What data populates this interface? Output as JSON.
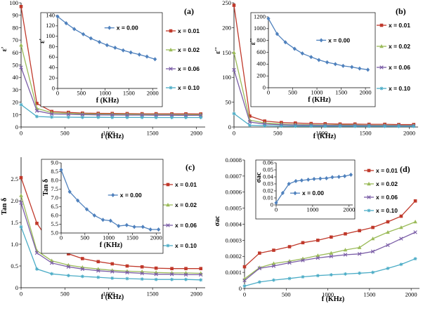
{
  "chart_data": [
    {
      "panel": "(a)",
      "type": "line",
      "xlabel": "f (KHz)",
      "ylabel": "ε'",
      "xlim": [
        0,
        2100
      ],
      "ylim": [
        0,
        100
      ],
      "xticks": [
        0,
        500,
        1000,
        1500,
        2000
      ],
      "yticks": [
        0,
        10,
        20,
        30,
        40,
        50,
        60,
        70,
        80,
        90,
        100
      ],
      "series": [
        {
          "name": "x = 0.01",
          "color": "#c0392b",
          "marker": "square",
          "x": [
            0,
            180,
            350,
            540,
            700,
            880,
            1040,
            1210,
            1380,
            1540,
            1720,
            1880,
            2050
          ],
          "y": [
            97,
            19,
            12.5,
            11.8,
            11.2,
            11,
            10.9,
            10.8,
            10.7,
            10.7,
            10.6,
            10.6,
            10.5
          ]
        },
        {
          "name": "x = 0.02",
          "color": "#9bbb59",
          "marker": "triangle",
          "x": [
            0,
            180,
            350,
            540,
            700,
            880,
            1040,
            1210,
            1380,
            1540,
            1720,
            1880,
            2050
          ],
          "y": [
            66,
            15,
            11.5,
            11,
            10.6,
            10.4,
            10.3,
            10.2,
            10.1,
            10,
            10,
            9.9,
            9.9
          ]
        },
        {
          "name": "x = 0.06",
          "color": "#7b5ea7",
          "marker": "x",
          "x": [
            0,
            180,
            350,
            540,
            700,
            880,
            1040,
            1210,
            1380,
            1540,
            1720,
            1880,
            2050
          ],
          "y": [
            48,
            13,
            10.5,
            10.2,
            10,
            9.8,
            9.7,
            9.6,
            9.6,
            9.5,
            9.5,
            9.4,
            9.4
          ]
        },
        {
          "name": "x = 0.10",
          "color": "#4bacc6",
          "marker": "star",
          "x": [
            0,
            180,
            350,
            540,
            700,
            880,
            1040,
            1210,
            1380,
            1540,
            1720,
            1880,
            2050
          ],
          "y": [
            18,
            8.5,
            8,
            7.9,
            7.8,
            7.8,
            7.7,
            7.7,
            7.7,
            7.6,
            7.6,
            7.6,
            7.6
          ]
        }
      ],
      "inset": {
        "xlabel": "f (KHz)",
        "ylabel": "ε'",
        "xlim": [
          0,
          2100
        ],
        "ylim": [
          0,
          140
        ],
        "xticks": [
          0,
          500,
          1000,
          1500,
          2000
        ],
        "yticks": [
          0,
          20,
          40,
          60,
          80,
          100,
          120,
          140
        ],
        "series": [
          {
            "name": "x = 0.00",
            "color": "#4f81bd",
            "marker": "diamond",
            "x": [
              0,
              180,
              350,
              540,
              700,
              880,
              1040,
              1210,
              1380,
              1540,
              1720,
              1880,
              2050
            ],
            "y": [
              138,
              125,
              114,
              104,
              96,
              89,
              83,
              78,
              73,
              69,
              65,
              61,
              56
            ]
          }
        ]
      }
    },
    {
      "panel": "(b)",
      "type": "line",
      "xlabel": "f (KHz)",
      "ylabel": "ε''",
      "xlim": [
        0,
        2100
      ],
      "ylim": [
        0,
        250
      ],
      "xticks": [
        0,
        500,
        1000,
        1500,
        2000
      ],
      "yticks": [
        0,
        50,
        100,
        150,
        200,
        250
      ],
      "series": [
        {
          "name": "x = 0.01",
          "color": "#c0392b",
          "marker": "square",
          "x": [
            0,
            180,
            350,
            540,
            700,
            880,
            1040,
            1210,
            1380,
            1540,
            1720,
            1880,
            2050
          ],
          "y": [
            245,
            22,
            12,
            9,
            8,
            7,
            6.5,
            6,
            6,
            5.5,
            5.5,
            5,
            5
          ]
        },
        {
          "name": "x = 0.02",
          "color": "#9bbb59",
          "marker": "triangle",
          "x": [
            0,
            180,
            350,
            540,
            700,
            880,
            1040,
            1210,
            1380,
            1540,
            1720,
            1880,
            2050
          ],
          "y": [
            150,
            14,
            8,
            6,
            5,
            4.5,
            4,
            4,
            3.8,
            3.5,
            3.5,
            3.3,
            3.2
          ]
        },
        {
          "name": "x = 0.06",
          "color": "#7b5ea7",
          "marker": "x",
          "x": [
            0,
            180,
            350,
            540,
            700,
            880,
            1040,
            1210,
            1380,
            1540,
            1720,
            1880,
            2050
          ],
          "y": [
            115,
            10,
            6,
            4.5,
            4,
            3.5,
            3.2,
            3,
            3,
            2.8,
            2.7,
            2.6,
            2.5
          ]
        },
        {
          "name": "x = 0.10",
          "color": "#4bacc6",
          "marker": "star",
          "x": [
            0,
            180,
            350,
            540,
            700,
            880,
            1040,
            1210,
            1380,
            1540,
            1720,
            1880,
            2050
          ],
          "y": [
            27,
            3.5,
            2.5,
            2,
            1.8,
            1.7,
            1.6,
            1.5,
            1.5,
            1.4,
            1.4,
            1.3,
            1.3
          ]
        }
      ],
      "inset": {
        "xlabel": "f (KHz)",
        "ylabel": "ε''",
        "xlim": [
          0,
          2100
        ],
        "ylim": [
          0,
          1200
        ],
        "xticks": [
          0,
          500,
          1000,
          1500,
          2000
        ],
        "yticks": [
          0,
          200,
          400,
          600,
          800,
          1000,
          1200
        ],
        "series": [
          {
            "name": "x = 0.00",
            "color": "#4f81bd",
            "marker": "diamond",
            "x": [
              0,
              180,
              350,
              540,
              700,
              880,
              1040,
              1210,
              1380,
              1540,
              1720,
              1880,
              2050
            ],
            "y": [
              1170,
              910,
              770,
              660,
              580,
              520,
              470,
              430,
              400,
              370,
              350,
              325,
              305
            ]
          }
        ]
      }
    },
    {
      "panel": "(c)",
      "type": "line",
      "xlabel": "f (KHz)",
      "ylabel": "Tan δ",
      "xlim": [
        0,
        2100
      ],
      "ylim": [
        0,
        3
      ],
      "xticks": [
        0,
        500,
        1000,
        1500,
        2000
      ],
      "yticks": [
        0,
        0.5,
        1,
        1.5,
        2,
        2.5
      ],
      "series": [
        {
          "name": "x = 0.01",
          "color": "#c0392b",
          "marker": "square",
          "x": [
            0,
            180,
            350,
            540,
            700,
            880,
            1040,
            1210,
            1380,
            1540,
            1720,
            1880,
            2050
          ],
          "y": [
            2.53,
            1.48,
            0.98,
            0.78,
            0.67,
            0.6,
            0.55,
            0.5,
            0.48,
            0.45,
            0.44,
            0.44,
            0.44
          ]
        },
        {
          "name": "x = 0.02",
          "color": "#9bbb59",
          "marker": "triangle",
          "x": [
            0,
            180,
            350,
            540,
            700,
            880,
            1040,
            1210,
            1380,
            1540,
            1720,
            1880,
            2050
          ],
          "y": [
            2.12,
            0.85,
            0.62,
            0.52,
            0.47,
            0.43,
            0.4,
            0.38,
            0.37,
            0.35,
            0.34,
            0.34,
            0.33
          ]
        },
        {
          "name": "x = 0.06",
          "color": "#7b5ea7",
          "marker": "x",
          "x": [
            0,
            180,
            350,
            540,
            700,
            880,
            1040,
            1210,
            1380,
            1540,
            1720,
            1880,
            2050
          ],
          "y": [
            1.95,
            0.8,
            0.57,
            0.48,
            0.43,
            0.39,
            0.37,
            0.35,
            0.33,
            0.31,
            0.31,
            0.3,
            0.3
          ]
        },
        {
          "name": "x = 0.10",
          "color": "#4bacc6",
          "marker": "star",
          "x": [
            0,
            180,
            350,
            540,
            700,
            880,
            1040,
            1210,
            1380,
            1540,
            1720,
            1880,
            2050
          ],
          "y": [
            1.4,
            0.43,
            0.32,
            0.28,
            0.26,
            0.24,
            0.22,
            0.21,
            0.2,
            0.19,
            0.19,
            0.19,
            0.18
          ]
        }
      ],
      "inset": {
        "xlabel": "f (KHz)",
        "ylabel": "Tan δ",
        "xlim": [
          0,
          2100
        ],
        "ylim": [
          5,
          9
        ],
        "xticks": [
          0,
          500,
          1000,
          1500,
          2000
        ],
        "yticks": [
          5,
          5.5,
          6,
          6.5,
          7,
          7.5,
          8,
          8.5,
          9
        ],
        "series": [
          {
            "name": "x = 0.00",
            "color": "#4f81bd",
            "marker": "diamond",
            "x": [
              0,
              180,
              350,
              540,
              700,
              880,
              1040,
              1210,
              1380,
              1540,
              1720,
              1880,
              2050
            ],
            "y": [
              8.6,
              7.35,
              6.85,
              6.35,
              6.0,
              5.75,
              5.7,
              5.4,
              5.45,
              5.35,
              5.35,
              5.2,
              5.2
            ]
          }
        ]
      }
    },
    {
      "panel": "(d)",
      "type": "line",
      "xlabel": "f (KHz)",
      "ylabel": "σac",
      "xlim": [
        0,
        2100
      ],
      "ylim": [
        0,
        0.0008
      ],
      "xticks": [
        0,
        500,
        1000,
        1500,
        2000
      ],
      "yticks": [
        0,
        0.0001,
        0.0002,
        0.0003,
        0.0004,
        0.0005,
        0.0006,
        0.0007,
        0.0008
      ],
      "series": [
        {
          "name": "x = 0.01",
          "color": "#c0392b",
          "marker": "square",
          "x": [
            0,
            180,
            350,
            540,
            700,
            880,
            1040,
            1210,
            1380,
            1540,
            1720,
            1880,
            2050
          ],
          "y": [
            0.000135,
            0.00022,
            0.000238,
            0.00026,
            0.000285,
            0.0003,
            0.00032,
            0.00034,
            0.00036,
            0.00038,
            0.000415,
            0.00045,
            0.000545
          ]
        },
        {
          "name": "x = 0.02",
          "color": "#9bbb59",
          "marker": "triangle",
          "x": [
            0,
            180,
            350,
            540,
            700,
            880,
            1040,
            1210,
            1380,
            1540,
            1720,
            1880,
            2050
          ],
          "y": [
            6e-05,
            0.00013,
            0.000155,
            0.00017,
            0.000185,
            0.000205,
            0.00022,
            0.00024,
            0.000255,
            0.00031,
            0.00035,
            0.00038,
            0.000415
          ]
        },
        {
          "name": "x = 0.06",
          "color": "#7b5ea7",
          "marker": "x",
          "x": [
            0,
            180,
            350,
            540,
            700,
            880,
            1040,
            1210,
            1380,
            1540,
            1720,
            1880,
            2050
          ],
          "y": [
            5e-05,
            0.000125,
            0.00014,
            0.00016,
            0.000175,
            0.00019,
            0.0002,
            0.00021,
            0.000215,
            0.00023,
            0.00027,
            0.00031,
            0.00035
          ]
        },
        {
          "name": "x = 0.10",
          "color": "#4bacc6",
          "marker": "star",
          "x": [
            0,
            180,
            350,
            540,
            700,
            880,
            1040,
            1210,
            1380,
            1540,
            1720,
            1880,
            2050
          ],
          "y": [
            1.5e-05,
            4e-05,
            5.2e-05,
            6.2e-05,
            7.2e-05,
            8e-05,
            8.5e-05,
            9e-05,
            9.5e-05,
            0.0001,
            0.000125,
            0.00015,
            0.000185
          ]
        }
      ],
      "inset": {
        "xlabel": "",
        "ylabel": "σac",
        "xlim": [
          0,
          2100
        ],
        "ylim": [
          0,
          0.06
        ],
        "xticks": [
          0,
          1000,
          2000
        ],
        "yticks": [
          0,
          0.01,
          0.02,
          0.03,
          0.04,
          0.05,
          0.06
        ],
        "series": [
          {
            "name": "x = 0.00",
            "color": "#4f81bd",
            "marker": "diamond",
            "x": [
              0,
              180,
              350,
              540,
              700,
              880,
              1040,
              1210,
              1380,
              1540,
              1720,
              1880,
              2050
            ],
            "y": [
              0.003,
              0.017,
              0.03,
              0.034,
              0.035,
              0.036,
              0.037,
              0.0375,
              0.038,
              0.0395,
              0.04,
              0.041,
              0.043
            ]
          }
        ]
      }
    }
  ]
}
